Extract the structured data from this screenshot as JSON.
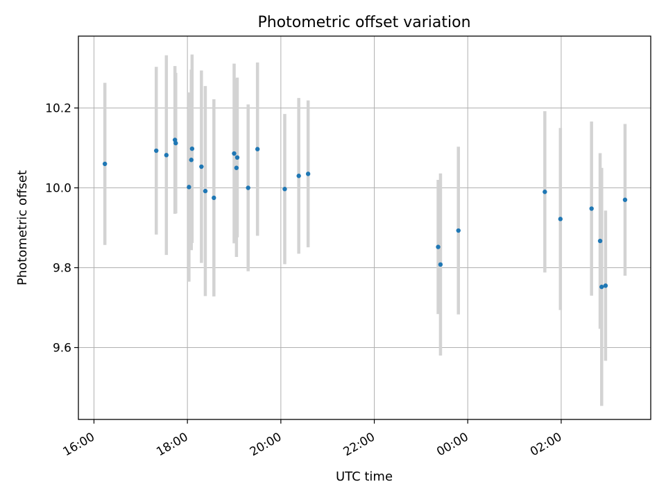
{
  "chart_data": {
    "type": "scatter",
    "title": "Photometric offset variation",
    "xlabel": "UTC time",
    "ylabel": "Photometric offset",
    "x_ticks": [
      "16:00",
      "18:00",
      "20:00",
      "22:00",
      "00:00",
      "02:00"
    ],
    "y_ticks": [
      "9.6",
      "9.8",
      "10.0",
      "10.2"
    ],
    "xlim": [
      "15:40",
      "03:55"
    ],
    "ylim": [
      9.42,
      10.38
    ],
    "grid": true,
    "legend": "none",
    "colors": {
      "point": "#1f77b4",
      "errorbar": "#d3d3d3",
      "grid": "#b0b0b0",
      "frame": "#000000"
    },
    "points": [
      {
        "x": "16:14",
        "y": 10.06,
        "err": 0.203
      },
      {
        "x": "17:20",
        "y": 10.093,
        "err": 0.21
      },
      {
        "x": "17:33",
        "y": 10.082,
        "err": 0.25
      },
      {
        "x": "17:44",
        "y": 10.12,
        "err": 0.185
      },
      {
        "x": "17:45",
        "y": 10.112,
        "err": 0.176
      },
      {
        "x": "18:02",
        "y": 10.002,
        "err": 0.237
      },
      {
        "x": "18:05",
        "y": 10.07,
        "err": 0.226
      },
      {
        "x": "18:06",
        "y": 10.098,
        "err": 0.236
      },
      {
        "x": "18:18",
        "y": 10.053,
        "err": 0.241
      },
      {
        "x": "18:23",
        "y": 9.992,
        "err": 0.263
      },
      {
        "x": "18:34",
        "y": 9.975,
        "err": 0.247
      },
      {
        "x": "19:00",
        "y": 10.086,
        "err": 0.225
      },
      {
        "x": "19:03",
        "y": 10.05,
        "err": 0.223
      },
      {
        "x": "19:04",
        "y": 10.076,
        "err": 0.2
      },
      {
        "x": "19:18",
        "y": 10.0,
        "err": 0.209
      },
      {
        "x": "19:30",
        "y": 10.097,
        "err": 0.217
      },
      {
        "x": "20:05",
        "y": 9.997,
        "err": 0.188
      },
      {
        "x": "20:23",
        "y": 10.03,
        "err": 0.195
      },
      {
        "x": "20:35",
        "y": 10.035,
        "err": 0.184
      },
      {
        "x": "23:22",
        "y": 9.852,
        "err": 0.168
      },
      {
        "x": "23:25",
        "y": 9.808,
        "err": 0.228
      },
      {
        "x": "23:48",
        "y": 9.893,
        "err": 0.21
      },
      {
        "x": "01:39",
        "y": 9.99,
        "err": 0.202
      },
      {
        "x": "01:59",
        "y": 9.922,
        "err": 0.228
      },
      {
        "x": "02:39",
        "y": 9.948,
        "err": 0.218
      },
      {
        "x": "02:50",
        "y": 9.867,
        "err": 0.22
      },
      {
        "x": "02:52",
        "y": 9.752,
        "err": 0.298
      },
      {
        "x": "02:57",
        "y": 9.755,
        "err": 0.188
      },
      {
        "x": "03:22",
        "y": 9.97,
        "err": 0.19
      }
    ]
  }
}
